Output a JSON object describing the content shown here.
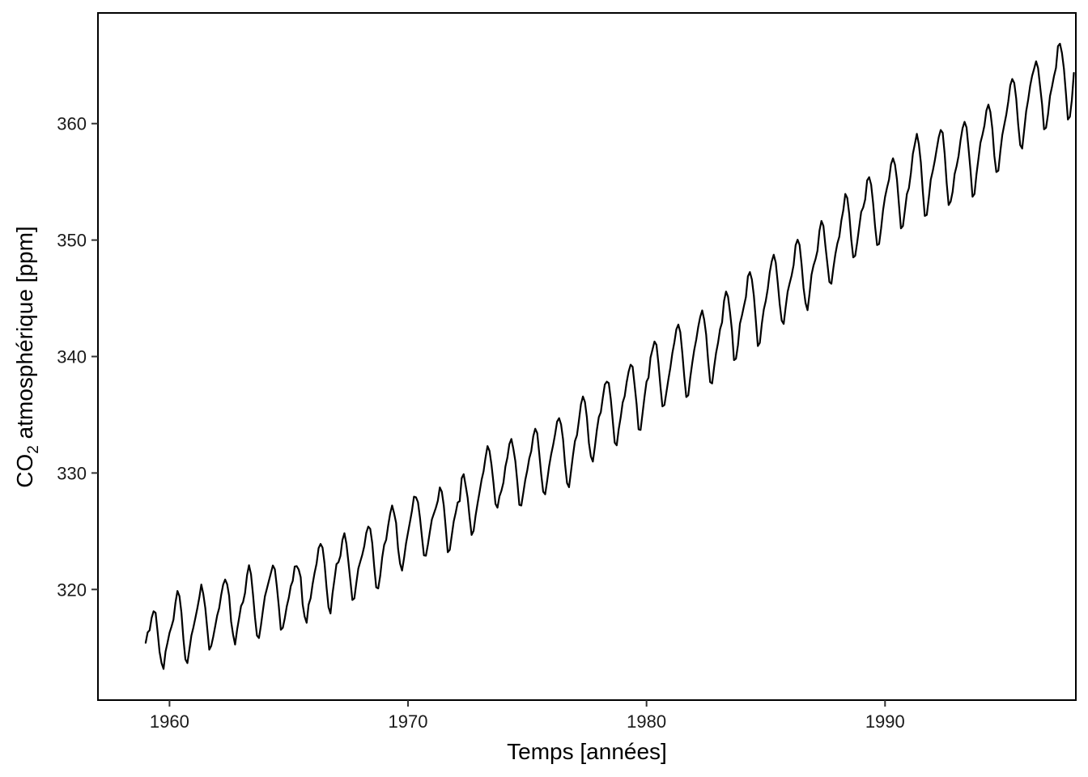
{
  "chart_data": {
    "type": "line",
    "xlabel": "Temps [années]",
    "ylabel_prefix": "CO",
    "ylabel_subscript": "2",
    "ylabel_suffix": " atmosphérique [ppm]",
    "xlim": [
      1957.0,
      1998.0
    ],
    "ylim": [
      310.5,
      369.5
    ],
    "x_ticks": [
      1960,
      1970,
      1980,
      1990
    ],
    "y_ticks": [
      320,
      330,
      340,
      350,
      360
    ],
    "grid": false,
    "legend": "none",
    "line_color": "#000000",
    "series": [
      {
        "x_start": 1959.0,
        "x_step": 0.08333333,
        "values": [
          315.42,
          316.31,
          316.5,
          317.56,
          318.13,
          318.0,
          316.39,
          314.65,
          313.68,
          313.18,
          314.66,
          315.43,
          316.27,
          316.81,
          317.42,
          318.87,
          319.87,
          319.43,
          318.01,
          315.74,
          314.0,
          313.68,
          314.84,
          316.03,
          316.73,
          317.54,
          318.38,
          319.31,
          320.42,
          319.61,
          318.42,
          316.63,
          314.83,
          315.16,
          315.94,
          316.85,
          317.78,
          318.4,
          319.53,
          320.42,
          320.85,
          320.45,
          319.45,
          317.25,
          316.11,
          315.27,
          316.53,
          317.53,
          318.58,
          318.92,
          319.7,
          321.22,
          322.08,
          321.31,
          319.58,
          317.61,
          316.05,
          315.83,
          316.91,
          318.2,
          319.41,
          320.07,
          320.74,
          321.4,
          322.06,
          321.73,
          320.27,
          318.54,
          316.54,
          316.71,
          317.53,
          318.55,
          319.27,
          320.28,
          320.73,
          321.97,
          322.0,
          321.71,
          321.05,
          318.71,
          317.66,
          317.14,
          318.7,
          319.25,
          320.46,
          321.43,
          322.23,
          323.54,
          323.91,
          323.59,
          322.24,
          320.2,
          318.48,
          317.94,
          319.63,
          320.87,
          322.17,
          322.34,
          322.88,
          324.25,
          324.83,
          323.93,
          322.38,
          320.76,
          319.1,
          319.24,
          320.56,
          321.8,
          322.4,
          322.99,
          323.73,
          324.86,
          325.4,
          325.2,
          323.98,
          321.95,
          320.18,
          320.09,
          321.16,
          322.74,
          323.83,
          324.26,
          325.47,
          326.5,
          327.21,
          326.54,
          325.72,
          323.5,
          322.22,
          321.62,
          322.69,
          323.95,
          324.89,
          325.82,
          326.77,
          327.97,
          327.91,
          327.5,
          326.18,
          324.53,
          322.93,
          322.9,
          323.85,
          324.96,
          326.01,
          326.51,
          327.01,
          327.62,
          328.76,
          328.4,
          327.2,
          325.27,
          323.2,
          323.4,
          324.63,
          325.85,
          326.6,
          327.47,
          327.58,
          329.56,
          329.9,
          328.92,
          327.88,
          326.16,
          324.68,
          325.04,
          326.34,
          327.39,
          328.37,
          329.4,
          330.14,
          331.33,
          332.31,
          331.9,
          330.7,
          329.15,
          327.35,
          327.02,
          327.99,
          328.48,
          329.18,
          330.55,
          331.32,
          332.48,
          332.92,
          332.08,
          331.01,
          329.23,
          327.27,
          327.21,
          328.29,
          329.41,
          330.23,
          331.25,
          331.87,
          333.14,
          333.8,
          333.43,
          331.73,
          329.9,
          328.4,
          328.17,
          329.32,
          330.59,
          331.58,
          332.39,
          333.33,
          334.41,
          334.71,
          334.17,
          332.89,
          330.77,
          329.14,
          328.78,
          330.14,
          331.52,
          332.75,
          333.24,
          334.53,
          335.9,
          336.57,
          336.1,
          334.76,
          332.59,
          331.42,
          330.98,
          332.24,
          333.68,
          334.8,
          335.22,
          336.47,
          337.59,
          337.84,
          337.72,
          336.37,
          334.51,
          332.6,
          332.38,
          333.75,
          334.78,
          336.05,
          336.59,
          337.79,
          338.71,
          339.3,
          339.12,
          337.56,
          335.92,
          333.75,
          333.7,
          335.12,
          336.56,
          337.84,
          338.19,
          339.91,
          340.6,
          341.29,
          341.0,
          339.39,
          337.43,
          335.72,
          335.84,
          336.93,
          338.04,
          339.06,
          340.3,
          341.21,
          342.33,
          342.74,
          342.08,
          340.32,
          338.26,
          336.52,
          336.68,
          338.19,
          339.44,
          340.57,
          341.44,
          342.53,
          343.39,
          343.96,
          343.18,
          341.88,
          339.65,
          337.81,
          337.69,
          339.09,
          340.32,
          341.2,
          342.35,
          342.93,
          344.77,
          345.58,
          345.14,
          343.81,
          342.21,
          339.69,
          339.82,
          340.98,
          342.82,
          343.52,
          344.33,
          345.11,
          346.88,
          347.25,
          346.62,
          345.22,
          343.11,
          340.9,
          341.18,
          342.8,
          344.04,
          344.79,
          345.82,
          347.25,
          348.17,
          348.74,
          348.07,
          346.38,
          344.51,
          343.09,
          342.8,
          344.24,
          345.56,
          346.29,
          346.96,
          347.86,
          349.55,
          350.03,
          349.58,
          347.94,
          345.89,
          344.6,
          343.98,
          345.38,
          347.02,
          347.81,
          348.35,
          349.08,
          350.8,
          351.64,
          351.21,
          349.5,
          347.96,
          346.41,
          346.25,
          347.6,
          348.78,
          349.7,
          350.3,
          351.66,
          352.56,
          353.96,
          353.61,
          352.21,
          350.07,
          348.51,
          348.66,
          349.82,
          351.13,
          352.42,
          352.79,
          353.48,
          355.13,
          355.4,
          354.76,
          353.16,
          351.15,
          349.57,
          349.66,
          350.97,
          352.56,
          353.7,
          354.5,
          355.19,
          356.51,
          357.02,
          356.48,
          355.19,
          353.06,
          351.0,
          351.21,
          352.56,
          353.96,
          354.46,
          355.74,
          357.41,
          358.24,
          359.12,
          358.24,
          356.68,
          354.2,
          352.07,
          352.16,
          353.58,
          355.18,
          355.92,
          356.79,
          357.82,
          358.82,
          359.45,
          359.21,
          357.41,
          354.91,
          353.01,
          353.3,
          354.14,
          355.66,
          356.35,
          357.23,
          358.58,
          359.6,
          360.15,
          359.67,
          357.89,
          355.98,
          353.72,
          353.96,
          355.65,
          356.99,
          358.36,
          359.03,
          359.83,
          361.12,
          361.63,
          360.99,
          359.54,
          357.22,
          355.84,
          355.96,
          357.6,
          359.03,
          359.91,
          360.77,
          361.89,
          363.28,
          363.83,
          363.49,
          362.14,
          359.89,
          358.16,
          357.86,
          359.44,
          361.05,
          362.03,
          363.23,
          364.1,
          364.71,
          365.35,
          364.76,
          363.22,
          361.67,
          359.51,
          359.65,
          360.8,
          362.38,
          363.17,
          364.07,
          364.78,
          366.65,
          366.86,
          366.07,
          364.7,
          362.61,
          360.35,
          360.59,
          362.04,
          364.35
        ]
      }
    ]
  }
}
